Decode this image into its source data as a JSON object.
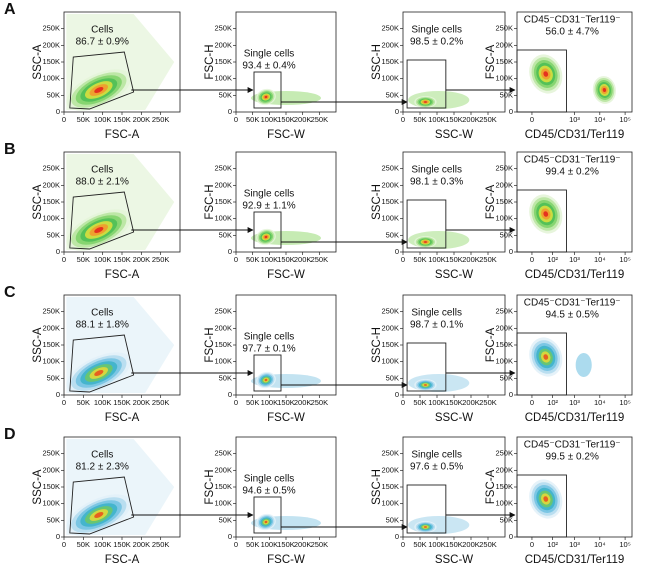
{
  "rows": [
    {
      "letter": "A",
      "panels": [
        {
          "x_label": "FSC-A",
          "y_label": "SSC-A",
          "xticks": [
            "0",
            "50K",
            "100K",
            "150K",
            "200K",
            "250K"
          ],
          "yticks": [
            "0",
            "50K",
            "100K",
            "150K",
            "200K",
            "250K"
          ],
          "gate_name": "Cells",
          "gate_value": "86.7 ± 0.9%"
        },
        {
          "x_label": "FSC-W",
          "y_label": "FSC-H",
          "xticks": [
            "0",
            "50K",
            "100K",
            "150K",
            "200K",
            "250K"
          ],
          "yticks": [
            "0",
            "50K",
            "100K",
            "150K",
            "200K",
            "250K"
          ],
          "gate_name": "Single cells",
          "gate_value": "93.4 ± 0.4%"
        },
        {
          "x_label": "SSC-W",
          "y_label": "SSC-H",
          "xticks": [
            "0",
            "50K",
            "100K",
            "150K",
            "200K",
            "250K"
          ],
          "yticks": [
            "0",
            "50K",
            "100K",
            "150K",
            "200K",
            "250K"
          ],
          "gate_name": "Single cells",
          "gate_value": "98.5 ± 0.2%"
        },
        {
          "x_label": "CD45/CD31/Ter119",
          "y_label": "FSC-A",
          "xticks": [
            "0",
            "10³",
            "10⁴",
            "10⁵"
          ],
          "yticks": [
            "0",
            "50K",
            "100K",
            "150K",
            "200K",
            "250K"
          ],
          "gate_name": "CD45⁻CD31⁻Ter119⁻",
          "gate_value": "56.0 ± 4.7%"
        }
      ]
    },
    {
      "letter": "B",
      "panels": [
        {
          "x_label": "FSC-A",
          "y_label": "SSC-A",
          "xticks": [
            "0",
            "50K",
            "100K",
            "150K",
            "200K",
            "250K"
          ],
          "yticks": [
            "0",
            "50K",
            "100K",
            "150K",
            "200K",
            "250K"
          ],
          "gate_name": "Cells",
          "gate_value": "88.0 ± 2.1%"
        },
        {
          "x_label": "FSC-W",
          "y_label": "FSC-H",
          "xticks": [
            "0",
            "50K",
            "100K",
            "150K",
            "200K",
            "250K"
          ],
          "yticks": [
            "0",
            "50K",
            "100K",
            "150K",
            "200K",
            "250K"
          ],
          "gate_name": "Single cells",
          "gate_value": "92.9 ± 1.1%"
        },
        {
          "x_label": "SSC-W",
          "y_label": "SSC-H",
          "xticks": [
            "0",
            "50K",
            "100K",
            "150K",
            "200K",
            "250K"
          ],
          "yticks": [
            "0",
            "50K",
            "100K",
            "150K",
            "200K",
            "250K"
          ],
          "gate_name": "Single cells",
          "gate_value": "98.1 ± 0.3%"
        },
        {
          "x_label": "CD45/CD31/Ter119",
          "y_label": "FSC-A",
          "xticks": [
            "0",
            "10²",
            "10³",
            "10⁴",
            "10⁵"
          ],
          "yticks": [
            "0",
            "50K",
            "100K",
            "150K",
            "200K",
            "250K"
          ],
          "gate_name": "CD45⁻CD31⁻Ter119⁻",
          "gate_value": "99.4 ± 0.2%"
        }
      ]
    },
    {
      "letter": "C",
      "panels": [
        {
          "x_label": "FSC-A",
          "y_label": "SSC-A",
          "xticks": [
            "0",
            "50K",
            "100K",
            "150K",
            "200K",
            "250K"
          ],
          "yticks": [
            "0",
            "50K",
            "100K",
            "150K",
            "200K",
            "250K"
          ],
          "gate_name": "Cells",
          "gate_value": "88.1 ± 1.8%"
        },
        {
          "x_label": "FSC-W",
          "y_label": "FSC-H",
          "xticks": [
            "0",
            "50K",
            "100K",
            "150K",
            "200K",
            "250K"
          ],
          "yticks": [
            "0",
            "50K",
            "100K",
            "150K",
            "200K",
            "250K"
          ],
          "gate_name": "Single cells",
          "gate_value": "97.7 ± 0.1%"
        },
        {
          "x_label": "SSC-W",
          "y_label": "SSC-H",
          "xticks": [
            "0",
            "50K",
            "100K",
            "150K",
            "200K",
            "250K"
          ],
          "yticks": [
            "0",
            "50K",
            "100K",
            "150K",
            "200K",
            "250K"
          ],
          "gate_name": "Single cells",
          "gate_value": "98.7 ± 0.1%"
        },
        {
          "x_label": "CD45/CD31/Ter119",
          "y_label": "FSC-A",
          "xticks": [
            "0",
            "10²",
            "10³",
            "10⁴",
            "10⁵"
          ],
          "yticks": [
            "0",
            "50K",
            "100K",
            "150K",
            "200K",
            "250K"
          ],
          "gate_name": "CD45⁻CD31⁻Ter119⁻",
          "gate_value": "94.5 ± 0.5%"
        }
      ]
    },
    {
      "letter": "D",
      "panels": [
        {
          "x_label": "FSC-A",
          "y_label": "SSC-A",
          "xticks": [
            "0",
            "50K",
            "100K",
            "150K",
            "200K",
            "250K"
          ],
          "yticks": [
            "0",
            "50K",
            "100K",
            "150K",
            "200K",
            "250K"
          ],
          "gate_name": "Cells",
          "gate_value": "81.2 ± 2.3%"
        },
        {
          "x_label": "FSC-W",
          "y_label": "FSC-H",
          "xticks": [
            "0",
            "50K",
            "100K",
            "150K",
            "200K",
            "250K"
          ],
          "yticks": [
            "0",
            "50K",
            "100K",
            "150K",
            "200K",
            "250K"
          ],
          "gate_name": "Single cells",
          "gate_value": "94.6 ± 0.5%"
        },
        {
          "x_label": "SSC-W",
          "y_label": "SSC-H",
          "xticks": [
            "0",
            "50K",
            "100K",
            "150K",
            "200K",
            "250K"
          ],
          "yticks": [
            "0",
            "50K",
            "100K",
            "150K",
            "200K",
            "250K"
          ],
          "gate_name": "Single cells",
          "gate_value": "97.6 ± 0.5%"
        },
        {
          "x_label": "CD45/CD31/Ter119",
          "y_label": "FSC-A",
          "xticks": [
            "0",
            "10²",
            "10³",
            "10⁴",
            "10⁵"
          ],
          "yticks": [
            "0",
            "50K",
            "100K",
            "150K",
            "200K",
            "250K"
          ],
          "gate_name": "CD45⁻CD31⁻Ter119⁻",
          "gate_value": "99.5 ± 0.2%"
        }
      ]
    }
  ]
}
